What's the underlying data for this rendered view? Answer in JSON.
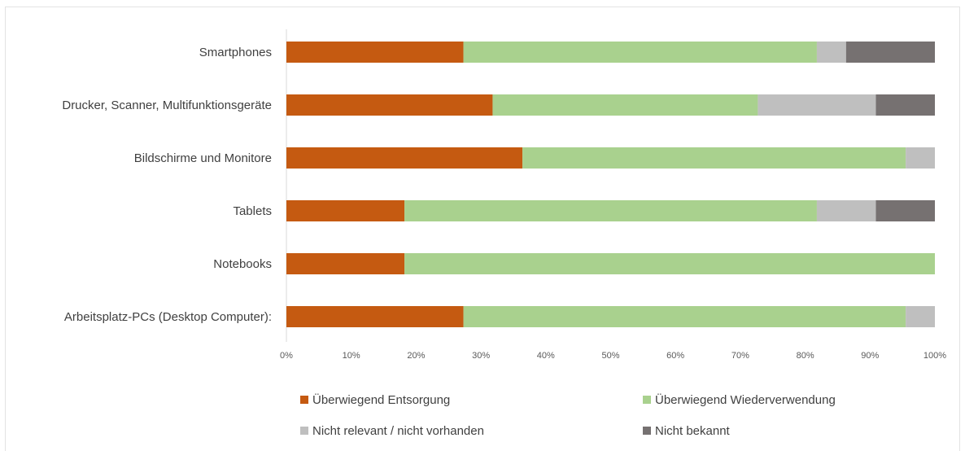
{
  "chart_data": {
    "type": "bar",
    "orientation": "horizontal",
    "stacked": "percent",
    "categories": [
      "Smartphones",
      "Drucker, Scanner, Multifunktionsgeräte",
      "Bildschirme und Monitore",
      "Tablets",
      "Notebooks",
      "Arbeitsplatz-PCs (Desktop Computer):"
    ],
    "series": [
      {
        "name": "Überwiegend Entsorgung",
        "color": "#C55A11",
        "values": [
          27.3,
          31.8,
          36.4,
          18.2,
          18.2,
          27.3
        ]
      },
      {
        "name": "Überwiegend Wiederverwendung",
        "color": "#A9D18E",
        "values": [
          54.5,
          40.9,
          59.1,
          63.6,
          81.8,
          68.2
        ]
      },
      {
        "name": "Nicht relevant / nicht vorhanden",
        "color": "#BFBFBF",
        "values": [
          4.5,
          18.2,
          4.5,
          9.1,
          0,
          4.5
        ]
      },
      {
        "name": "Nicht bekannt",
        "color": "#767171",
        "values": [
          13.7,
          9.1,
          0,
          9.1,
          0,
          0
        ]
      }
    ],
    "xticks": [
      "0%",
      "10%",
      "20%",
      "30%",
      "40%",
      "50%",
      "60%",
      "70%",
      "80%",
      "90%",
      "100%"
    ],
    "xlim": [
      0,
      100
    ],
    "title": "",
    "xlabel": "",
    "ylabel": "",
    "grid": false,
    "legend_position": "bottom"
  }
}
